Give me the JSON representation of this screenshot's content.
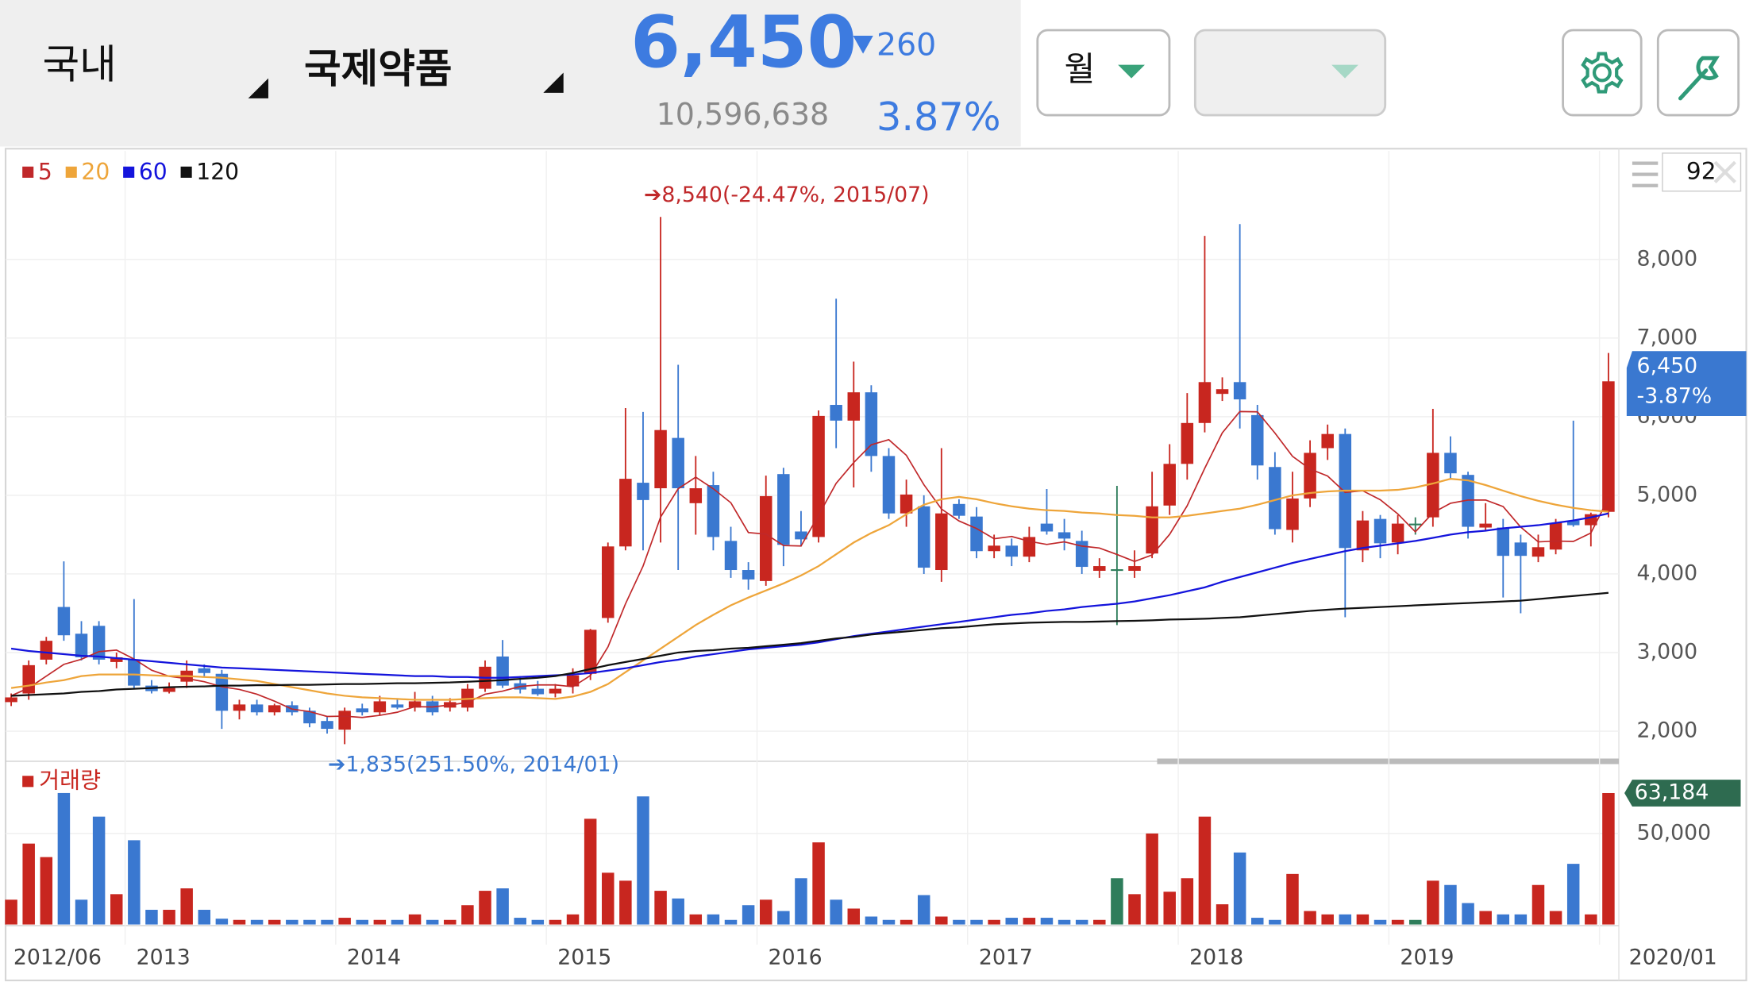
{
  "header": {
    "market": "국내",
    "name": "국제약품",
    "price": "6,450",
    "change": "260",
    "volume": "10,596,638",
    "change_rate": "3.87%",
    "period": "월",
    "count": "92"
  },
  "chart_data": {
    "type": "candlestick",
    "categories": [
      "2012/06",
      "2012/07",
      "2012/08",
      "2012/09",
      "2012/10",
      "2012/11",
      "2012/12",
      "2013/01",
      "2013/02",
      "2013/03",
      "2013/04",
      "2013/05",
      "2013/06",
      "2013/07",
      "2013/08",
      "2013/09",
      "2013/10",
      "2013/11",
      "2013/12",
      "2014/01",
      "2014/02",
      "2014/03",
      "2014/04",
      "2014/05",
      "2014/06",
      "2014/07",
      "2014/08",
      "2014/09",
      "2014/10",
      "2014/11",
      "2014/12",
      "2015/01",
      "2015/02",
      "2015/03",
      "2015/04",
      "2015/05",
      "2015/06",
      "2015/07",
      "2015/08",
      "2015/09",
      "2015/10",
      "2015/11",
      "2015/12",
      "2016/01",
      "2016/02",
      "2016/03",
      "2016/04",
      "2016/05",
      "2016/06",
      "2016/07",
      "2016/08",
      "2016/09",
      "2016/10",
      "2016/11",
      "2016/12",
      "2017/01",
      "2017/02",
      "2017/03",
      "2017/04",
      "2017/05",
      "2017/06",
      "2017/07",
      "2017/08",
      "2017/09",
      "2017/10",
      "2017/11",
      "2017/12",
      "2018/01",
      "2018/02",
      "2018/03",
      "2018/04",
      "2018/05",
      "2018/06",
      "2018/07",
      "2018/08",
      "2018/09",
      "2018/10",
      "2018/11",
      "2018/12",
      "2019/01",
      "2019/02",
      "2019/03",
      "2019/04",
      "2019/05",
      "2019/06",
      "2019/07",
      "2019/08",
      "2019/09",
      "2019/10",
      "2019/11",
      "2019/12",
      "2020/01"
    ],
    "open": [
      2370,
      2480,
      2910,
      3580,
      3240,
      3340,
      2880,
      2910,
      2580,
      2500,
      2630,
      2800,
      2730,
      2260,
      2340,
      2240,
      2330,
      2260,
      2130,
      2020,
      2290,
      2240,
      2340,
      2300,
      2380,
      2300,
      2300,
      2540,
      2950,
      2610,
      2540,
      2480,
      2570,
      2730,
      3440,
      4350,
      5160,
      5090,
      5730,
      4900,
      5130,
      4420,
      4050,
      3910,
      5270,
      4540,
      4470,
      6150,
      5950,
      6310,
      5500,
      4770,
      4860,
      4050,
      4890,
      4730,
      4290,
      4360,
      4220,
      4640,
      4530,
      4420,
      4040,
      4060,
      4040,
      4260,
      4870,
      5400,
      5920,
      6290,
      6440,
      6020,
      5360,
      4560,
      4960,
      5600,
      5780,
      4300,
      4700,
      4400,
      4640,
      4720,
      5540,
      5260,
      4590,
      4590,
      4400,
      4220,
      4310,
      4680,
      4620,
      4790
    ],
    "high": [
      2480,
      2900,
      3200,
      4160,
      3400,
      3400,
      3000,
      3680,
      2650,
      2620,
      2900,
      2850,
      2780,
      2400,
      2400,
      2350,
      2380,
      2300,
      2180,
      2300,
      2350,
      2450,
      2420,
      2500,
      2450,
      2420,
      2600,
      2900,
      3160,
      2700,
      2640,
      2600,
      2800,
      3300,
      4400,
      6110,
      6060,
      8540,
      6660,
      5500,
      5300,
      4600,
      4150,
      5250,
      5350,
      4800,
      6080,
      7500,
      6700,
      6400,
      5600,
      5200,
      5000,
      5600,
      4950,
      4850,
      4500,
      4450,
      4600,
      5080,
      4700,
      4550,
      4200,
      5120,
      4300,
      5300,
      5650,
      6300,
      8300,
      6500,
      8450,
      6150,
      5550,
      5300,
      5700,
      5900,
      5850,
      4800,
      4750,
      4750,
      4720,
      6100,
      5750,
      5300,
      4900,
      4700,
      4500,
      4500,
      4700,
      5950,
      4780,
      6810
    ],
    "low": [
      2320,
      2400,
      2850,
      3150,
      2900,
      2850,
      2800,
      2550,
      2480,
      2480,
      2550,
      2700,
      2030,
      2150,
      2200,
      2200,
      2200,
      2050,
      1970,
      1835,
      2200,
      2200,
      2280,
      2250,
      2200,
      2250,
      2250,
      2500,
      2550,
      2480,
      2450,
      2430,
      2480,
      2650,
      3380,
      4300,
      4300,
      4400,
      4050,
      4500,
      4300,
      3950,
      3800,
      3850,
      4100,
      4350,
      4400,
      5600,
      5100,
      5300,
      4700,
      4600,
      4000,
      3900,
      4700,
      4200,
      4200,
      4100,
      4150,
      4500,
      4300,
      4000,
      3950,
      3350,
      3950,
      4200,
      4750,
      5200,
      5800,
      6200,
      5850,
      5200,
      4500,
      4400,
      4850,
      5450,
      3450,
      4150,
      4200,
      4250,
      4500,
      4600,
      5200,
      4450,
      4550,
      3700,
      3500,
      4150,
      4250,
      4600,
      4350,
      4720
    ],
    "close": [
      2430,
      2840,
      3150,
      3220,
      2940,
      2910,
      2940,
      2580,
      2510,
      2550,
      2770,
      2740,
      2260,
      2340,
      2240,
      2330,
      2240,
      2100,
      2030,
      2260,
      2240,
      2380,
      2300,
      2380,
      2240,
      2370,
      2540,
      2820,
      2580,
      2530,
      2470,
      2540,
      2710,
      3290,
      4350,
      5210,
      4940,
      5830,
      5090,
      5090,
      4470,
      4050,
      3930,
      4990,
      4370,
      4440,
      6010,
      5950,
      6310,
      5500,
      4770,
      5010,
      4080,
      4770,
      4740,
      4290,
      4360,
      4220,
      4470,
      4540,
      4450,
      4090,
      4100,
      4060,
      4100,
      4860,
      5400,
      5920,
      6440,
      6350,
      6220,
      5380,
      4570,
      4960,
      5540,
      5780,
      4330,
      4680,
      4390,
      4640,
      4640,
      5540,
      5280,
      4600,
      4640,
      4230,
      4230,
      4340,
      4650,
      4620,
      4760,
      6450
    ],
    "up_color": "#c8261f",
    "down_color": "#3a78d0",
    "flat_color": "#2e7d5b",
    "series": [
      {
        "name": "5",
        "color": "#c0282a",
        "values": [
          2450,
          2550,
          2700,
          2850,
          2916,
          3012,
          3032,
          2918,
          2776,
          2698,
          2670,
          2630,
          2566,
          2532,
          2470,
          2382,
          2282,
          2250,
          2188,
          2192,
          2174,
          2202,
          2242,
          2312,
          2308,
          2334,
          2366,
          2470,
          2510,
          2568,
          2588,
          2588,
          2566,
          2708,
          3072,
          3620,
          4100,
          4724,
          5084,
          5232,
          5084,
          4906,
          4526,
          4506,
          4362,
          4356,
          4748,
          5152,
          5416,
          5642,
          5708,
          5508,
          5134,
          4826,
          4674,
          4578,
          4448,
          4476,
          4416,
          4376,
          4408,
          4354,
          4330,
          4248,
          4160,
          4242,
          4504,
          4868,
          5344,
          5794,
          6066,
          6062,
          5792,
          5496,
          5334,
          5246,
          5036,
          5058,
          4944,
          4764,
          4536,
          4778,
          4898,
          4940,
          4940,
          4858,
          4596,
          4408,
          4418,
          4414,
          4520,
          4964
        ]
      },
      {
        "name": "20",
        "color": "#eea53a",
        "values": [
          2550,
          2580,
          2620,
          2650,
          2700,
          2720,
          2720,
          2720,
          2710,
          2700,
          2700,
          2690,
          2680,
          2660,
          2640,
          2600,
          2560,
          2520,
          2480,
          2450,
          2430,
          2420,
          2410,
          2400,
          2400,
          2400,
          2410,
          2420,
          2430,
          2430,
          2420,
          2410,
          2440,
          2500,
          2600,
          2750,
          2900,
          3050,
          3200,
          3350,
          3480,
          3600,
          3700,
          3790,
          3880,
          3980,
          4100,
          4250,
          4400,
          4520,
          4620,
          4760,
          4880,
          4950,
          4980,
          4950,
          4900,
          4860,
          4830,
          4810,
          4800,
          4780,
          4770,
          4750,
          4740,
          4720,
          4720,
          4740,
          4770,
          4800,
          4830,
          4880,
          4940,
          5000,
          5030,
          5050,
          5060,
          5060,
          5060,
          5070,
          5100,
          5150,
          5210,
          5190,
          5130,
          5060,
          4990,
          4930,
          4880,
          4840,
          4810,
          4790
        ]
      },
      {
        "name": "60",
        "color": "#1414dc",
        "values": [
          3050,
          3020,
          3000,
          2980,
          2960,
          2950,
          2930,
          2910,
          2890,
          2870,
          2850,
          2830,
          2810,
          2800,
          2790,
          2780,
          2770,
          2760,
          2750,
          2740,
          2730,
          2720,
          2710,
          2700,
          2700,
          2690,
          2690,
          2680,
          2680,
          2690,
          2700,
          2710,
          2720,
          2740,
          2770,
          2800,
          2840,
          2880,
          2910,
          2950,
          2980,
          3010,
          3040,
          3060,
          3080,
          3100,
          3130,
          3170,
          3210,
          3240,
          3270,
          3300,
          3330,
          3360,
          3390,
          3420,
          3450,
          3480,
          3500,
          3530,
          3550,
          3580,
          3600,
          3620,
          3650,
          3690,
          3730,
          3780,
          3830,
          3900,
          3960,
          4020,
          4080,
          4140,
          4190,
          4240,
          4290,
          4330,
          4360,
          4390,
          4420,
          4460,
          4500,
          4530,
          4550,
          4580,
          4600,
          4620,
          4650,
          4680,
          4720,
          4770
        ]
      },
      {
        "name": "120",
        "color": "#111111",
        "values": [
          2450,
          2460,
          2470,
          2480,
          2500,
          2510,
          2530,
          2540,
          2550,
          2560,
          2565,
          2570,
          2580,
          2580,
          2585,
          2585,
          2590,
          2590,
          2595,
          2600,
          2600,
          2605,
          2610,
          2610,
          2615,
          2620,
          2630,
          2640,
          2650,
          2665,
          2680,
          2700,
          2740,
          2790,
          2840,
          2880,
          2920,
          2960,
          3000,
          3020,
          3030,
          3050,
          3060,
          3080,
          3100,
          3120,
          3150,
          3180,
          3200,
          3230,
          3250,
          3270,
          3290,
          3310,
          3320,
          3340,
          3360,
          3370,
          3380,
          3385,
          3390,
          3390,
          3395,
          3400,
          3405,
          3410,
          3420,
          3425,
          3430,
          3440,
          3450,
          3470,
          3490,
          3510,
          3530,
          3545,
          3560,
          3570,
          3580,
          3590,
          3600,
          3610,
          3620,
          3630,
          3640,
          3650,
          3660,
          3680,
          3700,
          3720,
          3740,
          3760
        ]
      }
    ],
    "ylim": [
      1660,
      9380
    ],
    "yticks": [
      {
        "value": 2000,
        "label": "2,000"
      },
      {
        "value": 3000,
        "label": "3,000"
      },
      {
        "value": 4000,
        "label": "4,000"
      },
      {
        "value": 5000,
        "label": "5,000"
      },
      {
        "value": 6000,
        "label": "6,000"
      },
      {
        "value": 7000,
        "label": "7,000"
      },
      {
        "value": 8000,
        "label": "8,000"
      }
    ],
    "grid": true,
    "xticks": [
      {
        "value": "2012/06",
        "label": "2012/06"
      },
      {
        "value": "2013/01",
        "label": "2013"
      },
      {
        "value": "2014/01",
        "label": "2014"
      },
      {
        "value": "2015/01",
        "label": "2015"
      },
      {
        "value": "2016/01",
        "label": "2016"
      },
      {
        "value": "2017/01",
        "label": "2017"
      },
      {
        "value": "2018/01",
        "label": "2018"
      },
      {
        "value": "2019/01",
        "label": "2019"
      },
      {
        "value": "2020/01",
        "label": "2020/01"
      }
    ],
    "annotations": [
      {
        "text": "➔8,540(-24.47%, 2015/07)",
        "x": "2015/07",
        "y": 8540,
        "color": "#c0282a"
      },
      {
        "text": "➔1,835(251.50%, 2014/01)",
        "x": "2014/01",
        "y": 1835,
        "color": "#3a78d0"
      }
    ],
    "last_price": {
      "value": 6450,
      "label": "6,450",
      "change": "-3.87%"
    },
    "volume": {
      "name": "거래량",
      "color": "#c8261f",
      "values": [
        28400,
        46700,
        42300,
        63200,
        28400,
        55500,
        30200,
        47800,
        25100,
        25100,
        32100,
        25100,
        22200,
        21800,
        21800,
        21800,
        21800,
        21800,
        21800,
        22500,
        21800,
        21800,
        21800,
        23600,
        21800,
        21800,
        26600,
        31300,
        32100,
        22500,
        21800,
        21800,
        23600,
        54800,
        37200,
        34600,
        62100,
        31300,
        28800,
        23600,
        23600,
        21800,
        26600,
        28400,
        24700,
        35400,
        47100,
        28400,
        25500,
        22900,
        21800,
        21800,
        29900,
        22900,
        21800,
        21800,
        21800,
        22500,
        22500,
        22500,
        21800,
        21800,
        21800,
        35400,
        30200,
        50000,
        31000,
        35400,
        55500,
        26900,
        43800,
        22500,
        21800,
        36800,
        24700,
        23600,
        23600,
        23600,
        21800,
        21800,
        21800,
        34600,
        33200,
        27300,
        24700,
        23600,
        23600,
        33200,
        24700,
        40100,
        23600,
        63184
      ],
      "ylim": [
        20300,
        71000
      ],
      "yticks": [
        {
          "value": 50000,
          "label": "50,000"
        }
      ],
      "last": {
        "value": 63184,
        "label": "63,184"
      }
    }
  }
}
